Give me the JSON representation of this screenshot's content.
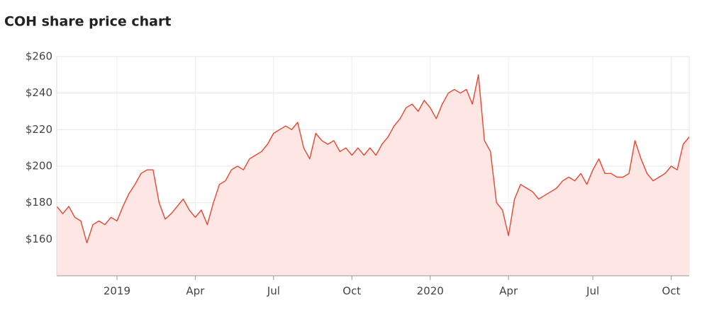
{
  "chart_data": {
    "type": "line",
    "title": "COH share price chart",
    "categories": [
      null,
      null,
      null,
      null,
      null,
      null,
      null,
      null,
      null,
      null,
      "2019",
      null,
      null,
      null,
      null,
      null,
      null,
      null,
      null,
      null,
      null,
      null,
      null,
      "Apr",
      null,
      null,
      null,
      null,
      null,
      null,
      null,
      null,
      null,
      null,
      null,
      null,
      "Jul",
      null,
      null,
      null,
      null,
      null,
      null,
      null,
      null,
      null,
      null,
      null,
      null,
      "Oct",
      null,
      null,
      null,
      null,
      null,
      null,
      null,
      null,
      null,
      null,
      null,
      null,
      "2020",
      null,
      null,
      null,
      null,
      null,
      null,
      null,
      null,
      null,
      null,
      null,
      null,
      "Apr",
      null,
      null,
      null,
      null,
      null,
      null,
      null,
      null,
      null,
      null,
      null,
      null,
      null,
      "Jul",
      null,
      null,
      null,
      null,
      null,
      null,
      null,
      null,
      null,
      null,
      null,
      null,
      "Oct",
      null,
      null,
      null
    ],
    "series": [
      {
        "name": "COH",
        "color": "#e8472f",
        "fill": "#fde6e3",
        "values": [
          178,
          174,
          178,
          172,
          170,
          158,
          168,
          170,
          168,
          172,
          170,
          178,
          185,
          190,
          196,
          198,
          198,
          180,
          171,
          174,
          178,
          182,
          176,
          172,
          176,
          168,
          180,
          190,
          192,
          198,
          200,
          198,
          204,
          206,
          208,
          212,
          218,
          220,
          222,
          220,
          224,
          210,
          204,
          218,
          214,
          212,
          214,
          208,
          210,
          206,
          210,
          206,
          210,
          206,
          212,
          216,
          222,
          226,
          232,
          234,
          230,
          236,
          232,
          226,
          234,
          240,
          242,
          240,
          242,
          234,
          250,
          214,
          208,
          180,
          176,
          162,
          182,
          190,
          188,
          186,
          182,
          184,
          186,
          188,
          192,
          194,
          192,
          196,
          190,
          198,
          204,
          196,
          196,
          194,
          194,
          196,
          214,
          204,
          196,
          192,
          194,
          196,
          200,
          198,
          212,
          216
        ]
      }
    ],
    "ylim": [
      140,
      260
    ],
    "yticks": [
      {
        "value": 160,
        "label": "$160"
      },
      {
        "value": 180,
        "label": "$180"
      },
      {
        "value": 200,
        "label": "$200"
      },
      {
        "value": 220,
        "label": "$220"
      },
      {
        "value": 240,
        "label": "$240"
      },
      {
        "value": 260,
        "label": "$260"
      }
    ],
    "grid": true
  }
}
